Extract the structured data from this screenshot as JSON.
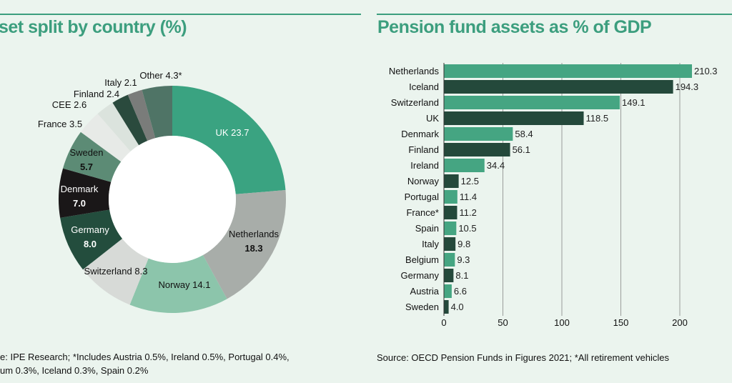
{
  "chart_data": [
    {
      "type": "pie",
      "title": "set split by country (%)",
      "slices": [
        {
          "label": "UK",
          "value": 23.7,
          "text": "UK 23.7",
          "color": "#3aa381"
        },
        {
          "label": "Netherlands",
          "value": 18.3,
          "text": "Netherlands|18.3",
          "color": "#a8ada9"
        },
        {
          "label": "Norway",
          "value": 14.1,
          "text": "Norway 14.1",
          "color": "#8cc5ab"
        },
        {
          "label": "Switzerland",
          "value": 8.3,
          "text": "Switzerland 8.3",
          "color": "#d7dad7"
        },
        {
          "label": "Germany",
          "value": 8.0,
          "text": "Germany|8.0",
          "color": "#234d3d"
        },
        {
          "label": "Denmark",
          "value": 7.0,
          "text": "Denmark|7.0",
          "color": "#1a1718"
        },
        {
          "label": "Sweden",
          "value": 5.7,
          "text": "Sweden|5.7",
          "color": "#5c8b75"
        },
        {
          "label": "France",
          "value": 3.5,
          "text": "France 3.5",
          "color": "#e7eae7"
        },
        {
          "label": "CEE",
          "value": 2.6,
          "text": "CEE 2.6",
          "color": "#dbe3dd"
        },
        {
          "label": "Finland",
          "value": 2.4,
          "text": "Finland 2.4",
          "color": "#2a4a3d"
        },
        {
          "label": "Italy",
          "value": 2.1,
          "text": "Italy 2.1",
          "color": "#7a7c7a"
        },
        {
          "label": "Other",
          "value": 4.3,
          "text": "Other 4.3*",
          "color": "#4f7466"
        }
      ],
      "source": [
        "e: IPE Research; *Includes Austria 0.5%, Ireland 0.5%, Portugal 0.4%,",
        "um 0.3%, Iceland 0.3%, Spain 0.2%"
      ]
    },
    {
      "type": "bar",
      "orientation": "horizontal",
      "title": "Pension fund assets as % of GDP",
      "categories": [
        "Netherlands",
        "Iceland",
        "Switzerland",
        "UK",
        "Denmark",
        "Finland",
        "Ireland",
        "Norway",
        "Portugal",
        "France*",
        "Spain",
        "Italy",
        "Belgium",
        "Germany",
        "Austria",
        "Sweden"
      ],
      "values": [
        210.3,
        194.3,
        149.1,
        118.5,
        58.4,
        56.1,
        34.4,
        12.5,
        11.4,
        11.2,
        10.5,
        9.8,
        9.3,
        8.1,
        6.6,
        4.0
      ],
      "value_labels": [
        "210.3",
        "194.3",
        "149.1",
        "118.5",
        "58.4",
        "56.1",
        "34.4",
        "12.5",
        "11.4",
        "11.2",
        "10.5",
        "9.8",
        "9.3",
        "8.1",
        "6.6",
        "4.0"
      ],
      "xlim": [
        0,
        210
      ],
      "xticks": [
        "0",
        "50",
        "100",
        "150",
        "200"
      ],
      "grid": true,
      "colors": [
        "#45a582",
        "#24493b"
      ],
      "source": "Source: OECD Pension Funds in Figures 2021; *All retirement vehicles"
    }
  ]
}
